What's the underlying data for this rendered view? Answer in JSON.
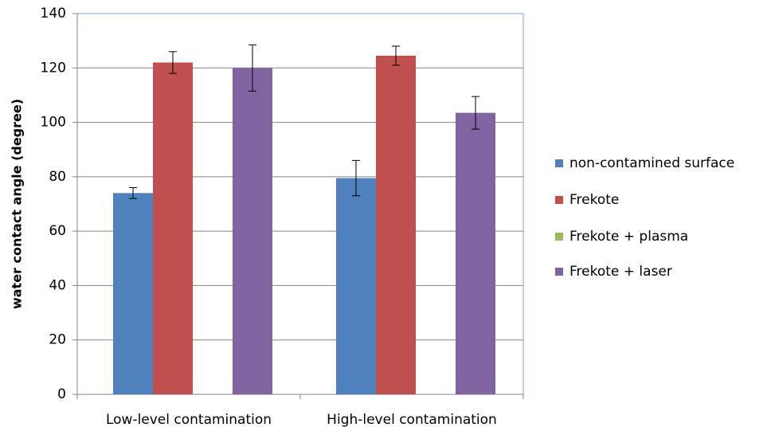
{
  "chart_data": {
    "type": "bar",
    "y_label": "water contact angle (degree)",
    "categories": [
      "Low-level contamination",
      "High-level contamination"
    ],
    "series": [
      {
        "name": "non-contamined surface",
        "color": "#4f81bd",
        "values": [
          74,
          79.5
        ],
        "errors": [
          2,
          6.5
        ]
      },
      {
        "name": "Frekote",
        "color": "#c0504d",
        "values": [
          122,
          124.5
        ],
        "errors": [
          4,
          3.5
        ]
      },
      {
        "name": "Frekote + plasma",
        "color": "#9bbb59",
        "values": [
          null,
          null
        ],
        "errors": [
          null,
          null
        ]
      },
      {
        "name": "Frekote + laser",
        "color": "#8064a2",
        "values": [
          120,
          103.5
        ],
        "errors": [
          8.5,
          6
        ]
      }
    ],
    "ylim": [
      0,
      140
    ],
    "yticks": [
      0,
      20,
      40,
      60,
      80,
      100,
      120,
      140
    ],
    "grid": true,
    "legend": "right"
  }
}
